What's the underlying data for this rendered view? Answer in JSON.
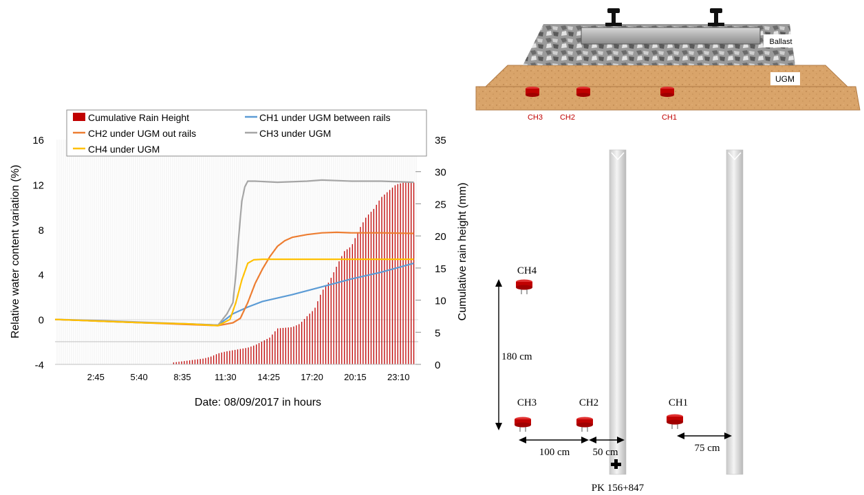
{
  "chart_data": {
    "type": "line",
    "title": "",
    "xlabel": "Date: 08/09/2017 in hours",
    "ylabel_left": "Relative water content variation (%)",
    "ylabel_right": "Cumulative rain height (mm)",
    "ylim_left": [
      -4,
      16
    ],
    "ylim_right": [
      0,
      35
    ],
    "yticks_left": [
      "-4",
      "0",
      "4",
      "8",
      "12",
      "16"
    ],
    "yticks_right": [
      "0",
      "5",
      "10",
      "15",
      "20",
      "25",
      "30",
      "35"
    ],
    "xlim": [
      0,
      24.5
    ],
    "x_ticks": [
      {
        "label": "2:45",
        "h": 2.75
      },
      {
        "label": "5:40",
        "h": 5.667
      },
      {
        "label": "8:35",
        "h": 8.583
      },
      {
        "label": "11:30",
        "h": 11.5
      },
      {
        "label": "14:25",
        "h": 14.417
      },
      {
        "label": "17:20",
        "h": 17.333
      },
      {
        "label": "20:15",
        "h": 20.25
      },
      {
        "label": "23:10",
        "h": 23.167
      }
    ],
    "legend": [
      {
        "name": "Cumulative Rain Height",
        "color": "#c00000",
        "kind": "bar"
      },
      {
        "name": "CH1 under UGM between rails",
        "color": "#5b9bd5",
        "kind": "line"
      },
      {
        "name": "CH2 under UGM out rails",
        "color": "#ed7d31",
        "kind": "line"
      },
      {
        "name": "CH3 under UGM",
        "color": "#a5a5a5",
        "kind": "line"
      },
      {
        "name": "CH4 under UGM",
        "color": "#ffc000",
        "kind": "line"
      }
    ],
    "legend_position": "top",
    "series": [
      {
        "name": "CH1 under UGM between rails",
        "color": "#5b9bd5",
        "x": [
          0,
          3,
          6,
          9,
          11,
          12,
          13,
          14,
          16,
          18,
          20,
          22,
          24.2
        ],
        "y": [
          0,
          -0.15,
          -0.3,
          -0.4,
          -0.5,
          0.5,
          1.1,
          1.6,
          2.2,
          2.9,
          3.6,
          4.2,
          5.0
        ]
      },
      {
        "name": "CH2 under UGM out rails",
        "color": "#ed7d31",
        "x": [
          0,
          3,
          6,
          9,
          11,
          12,
          12.5,
          13,
          13.5,
          14,
          14.5,
          15,
          15.5,
          16,
          17,
          18,
          19,
          20,
          22,
          24.2
        ],
        "y": [
          0,
          -0.15,
          -0.3,
          -0.45,
          -0.55,
          -0.3,
          0.1,
          1.5,
          3.2,
          4.5,
          5.6,
          6.5,
          7.0,
          7.3,
          7.55,
          7.7,
          7.75,
          7.7,
          7.7,
          7.65
        ]
      },
      {
        "name": "CH3 under UGM",
        "color": "#a5a5a5",
        "x": [
          0,
          3,
          6,
          9,
          11,
          11.6,
          12,
          12.2,
          12.4,
          12.6,
          12.8,
          13,
          13.5,
          15,
          17,
          18,
          20,
          22,
          24.2
        ],
        "y": [
          0,
          -0.1,
          -0.25,
          -0.4,
          -0.5,
          0.5,
          1.5,
          4.0,
          7.5,
          10.5,
          11.8,
          12.3,
          12.3,
          12.2,
          12.3,
          12.4,
          12.3,
          12.3,
          12.2
        ]
      },
      {
        "name": "CH4 under UGM",
        "color": "#ffc000",
        "x": [
          0,
          3,
          6,
          9,
          11,
          11.8,
          12.2,
          12.6,
          13,
          13.4,
          14,
          16,
          18,
          20,
          22,
          24.2
        ],
        "y": [
          0,
          -0.15,
          -0.3,
          -0.4,
          -0.55,
          0,
          1.5,
          3.5,
          5.0,
          5.3,
          5.35,
          5.35,
          5.35,
          5.35,
          5.35,
          5.35
        ]
      }
    ],
    "rain": {
      "name": "Cumulative Rain Height",
      "color": "#c00000",
      "x": [
        8,
        9,
        10,
        10.5,
        11,
        11.5,
        12,
        12.5,
        13,
        13.5,
        14,
        14.5,
        15,
        15.5,
        16,
        16.5,
        17,
        17.5,
        18,
        18.5,
        19,
        19.5,
        20,
        20.5,
        21,
        21.5,
        22,
        22.5,
        23,
        23.5,
        24,
        24.3
      ],
      "y": [
        0.3,
        0.6,
        0.9,
        1.2,
        1.7,
        2.0,
        2.2,
        2.4,
        2.6,
        3.0,
        3.6,
        4.2,
        5.6,
        5.7,
        5.8,
        6.3,
        7.5,
        8.6,
        11.4,
        12.9,
        15.3,
        17.6,
        18.4,
        21.0,
        23.0,
        24.2,
        26.0,
        27.0,
        28.0,
        28.3,
        28.3,
        28.3
      ]
    }
  },
  "cross_section": {
    "labels": {
      "ballast": "Ballast",
      "ugm": "UGM"
    },
    "sensors": [
      "CH3",
      "CH2",
      "CH1"
    ]
  },
  "plan": {
    "sensors": [
      "CH4",
      "CH3",
      "CH2",
      "CH1"
    ],
    "dims": {
      "vertical": "180 cm",
      "a": "100 cm",
      "b": "50 cm",
      "c": "75 cm"
    },
    "pk": "PK 156+847"
  }
}
